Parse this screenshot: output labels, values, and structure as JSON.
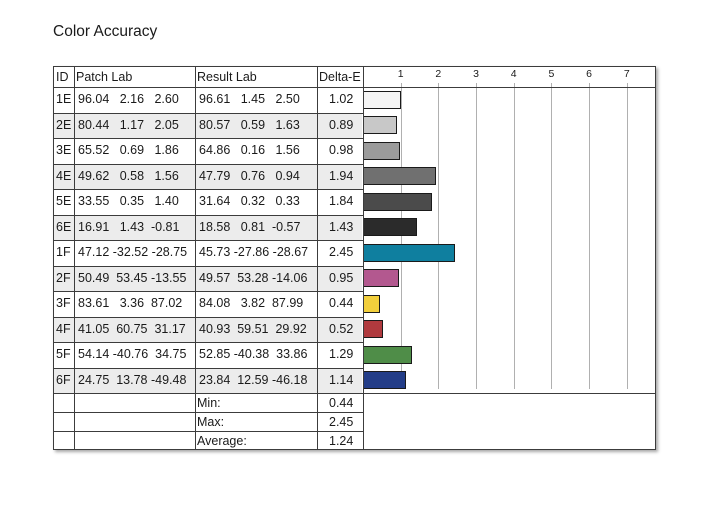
{
  "title": "Color Accuracy",
  "chart_data": {
    "type": "table",
    "columns": [
      "ID",
      "Patch Lab",
      "Result Lab",
      "Delta-E"
    ],
    "axis_ticks": [
      "1",
      "2",
      "3",
      "4",
      "5",
      "6",
      "7"
    ],
    "xlim": [
      0,
      7.75
    ],
    "rows": [
      {
        "id": "1E",
        "patch": "96.04   2.16   2.60",
        "result": "96.61   1.45   2.50",
        "de": "1.02",
        "value": 1.02,
        "color": "#f5f5f5"
      },
      {
        "id": "2E",
        "patch": "80.44   1.17   2.05",
        "result": "80.57   0.59   1.63",
        "de": "0.89",
        "value": 0.89,
        "color": "#c8c8c8"
      },
      {
        "id": "3E",
        "patch": "65.52   0.69   1.86",
        "result": "64.86   0.16   1.56",
        "de": "0.98",
        "value": 0.98,
        "color": "#9b9b9b"
      },
      {
        "id": "4E",
        "patch": "49.62   0.58   1.56",
        "result": "47.79   0.76   0.94",
        "de": "1.94",
        "value": 1.94,
        "color": "#707070"
      },
      {
        "id": "5E",
        "patch": "33.55   0.35   1.40",
        "result": "31.64   0.32   0.33",
        "de": "1.84",
        "value": 1.84,
        "color": "#4b4b4b"
      },
      {
        "id": "6E",
        "patch": "16.91   1.43  -0.81",
        "result": "18.58   0.81  -0.57",
        "de": "1.43",
        "value": 1.43,
        "color": "#2b2b2b"
      },
      {
        "id": "1F",
        "patch": "47.12 -32.52 -28.75",
        "result": "45.73 -27.86 -28.67",
        "de": "2.45",
        "value": 2.45,
        "color": "#0f7f9f"
      },
      {
        "id": "2F",
        "patch": "50.49  53.45 -13.55",
        "result": "49.57  53.28 -14.06",
        "de": "0.95",
        "value": 0.95,
        "color": "#b3588f"
      },
      {
        "id": "3F",
        "patch": "83.61   3.36  87.02",
        "result": "84.08   3.82  87.99",
        "de": "0.44",
        "value": 0.44,
        "color": "#f2cf3c"
      },
      {
        "id": "4F",
        "patch": "41.05  60.75  31.17",
        "result": "40.93  59.51  29.92",
        "de": "0.52",
        "value": 0.52,
        "color": "#b03a3e"
      },
      {
        "id": "5F",
        "patch": "54.14 -40.76  34.75",
        "result": "52.85 -40.38  33.86",
        "de": "1.29",
        "value": 1.29,
        "color": "#4f8d48"
      },
      {
        "id": "6F",
        "patch": "24.75  13.78 -49.48",
        "result": "23.84  12.59 -46.18",
        "de": "1.14",
        "value": 1.14,
        "color": "#233d88"
      }
    ],
    "summary": [
      {
        "label": "Min:",
        "value": "0.44"
      },
      {
        "label": "Max:",
        "value": "2.45"
      },
      {
        "label": "Average:",
        "value": "1.24"
      }
    ]
  }
}
